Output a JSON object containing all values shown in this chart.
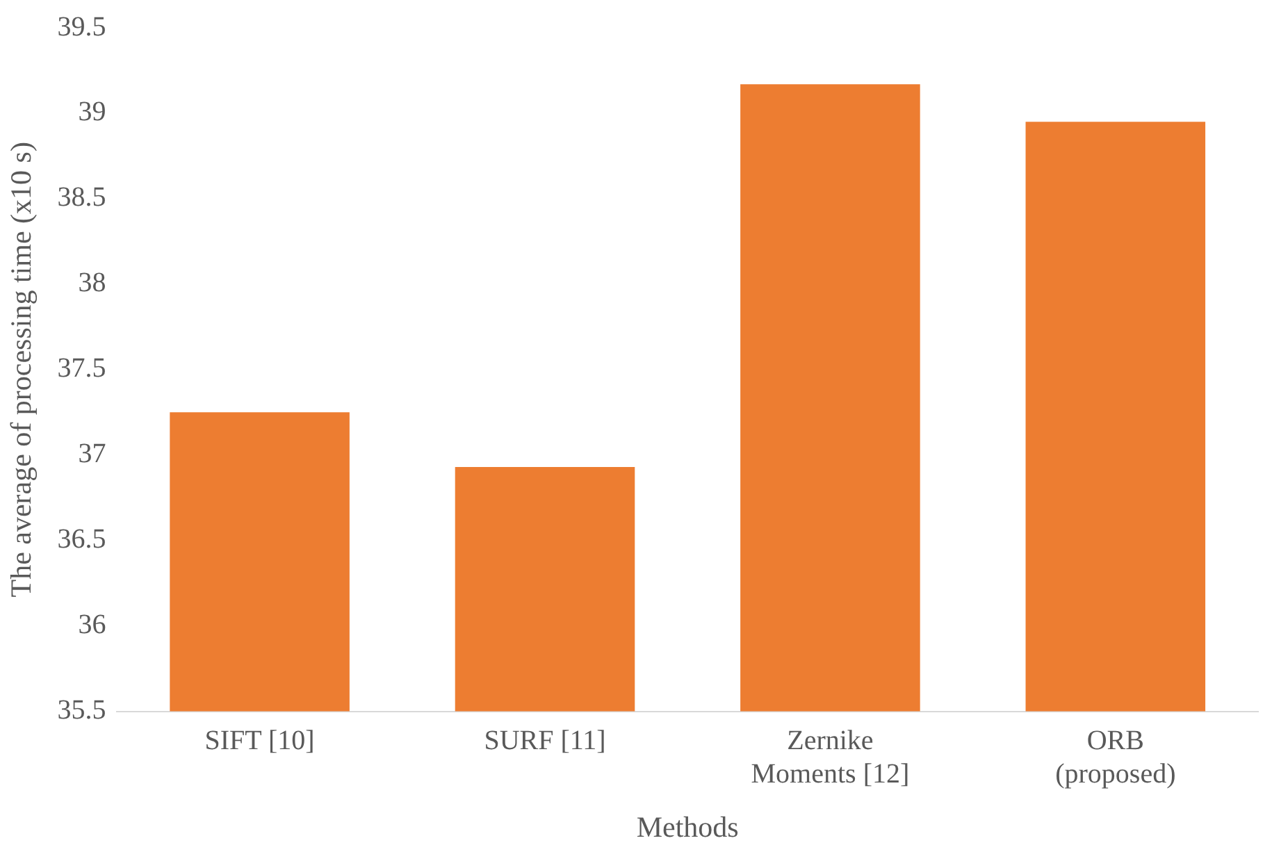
{
  "chart_data": {
    "type": "bar",
    "xlabel": "Methods",
    "ylabel": "The average of processing time (x10 s)",
    "categories": [
      "SIFT [10]",
      "SURF [11]",
      "Zernike Moments [12]",
      "ORB (proposed)"
    ],
    "values": [
      37.25,
      36.93,
      39.17,
      38.95
    ],
    "color": "#ed7d31",
    "ylim": [
      35.5,
      39.5
    ],
    "yticks": [
      35.5,
      36,
      36.5,
      37,
      37.5,
      38,
      38.5,
      39,
      39.5
    ],
    "grid": false,
    "legend": false
  }
}
